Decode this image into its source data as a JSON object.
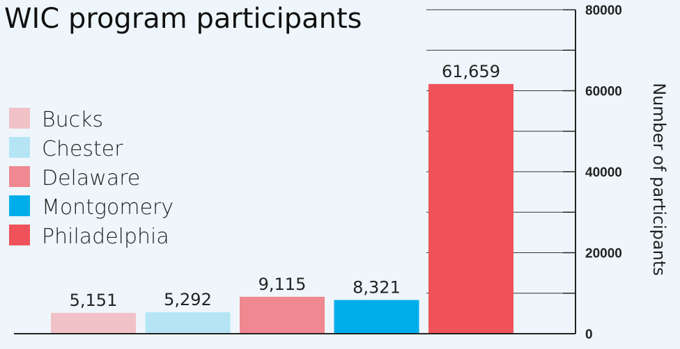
{
  "chart_data": {
    "type": "bar",
    "title": "WIC program participants",
    "ylabel": "Number of participants",
    "categories": [
      "Bucks",
      "Chester",
      "Delaware",
      "Montgomery",
      "Philadelphia"
    ],
    "values": [
      5151,
      5292,
      9115,
      8321,
      61659
    ],
    "value_labels": [
      "5,151",
      "5,292",
      "9,115",
      "8,321",
      "61,659"
    ],
    "colors": [
      "#f0c2c8",
      "#b5e5f5",
      "#ef8890",
      "#00adeb",
      "#ef525a"
    ],
    "ylim": [
      0,
      80000
    ],
    "yticks": [
      0,
      20000,
      40000,
      60000,
      80000
    ],
    "ytick_labels": [
      "0",
      "20000",
      "40000",
      "60000",
      "80000"
    ],
    "y_axis_position": "right",
    "grid": true,
    "legend_position": "left"
  }
}
